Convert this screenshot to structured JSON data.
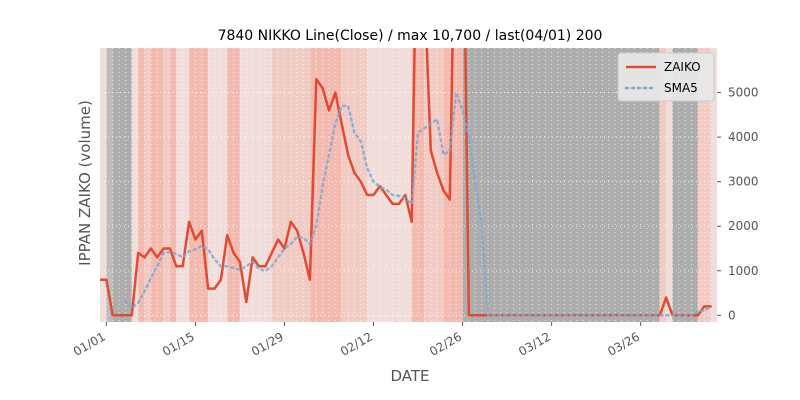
{
  "chart_data": {
    "type": "line",
    "title": "7840 NIKKO Line(Close) / max 10,700 / last(04/01) 200",
    "xlabel": "DATE",
    "ylabel": "IPPAN ZAIKO (volume)",
    "ylim": [
      -150,
      6000
    ],
    "yticks": [
      0,
      1000,
      2000,
      3000,
      4000,
      5000
    ],
    "ytick_labels": [
      "0",
      "1000",
      "2000",
      "3000",
      "4000",
      "5000"
    ],
    "x_start_date": "12/31",
    "x_end_date": "04/01",
    "xticks": [
      "01/01",
      "01/15",
      "01/29",
      "02/12",
      "02/26",
      "03/12",
      "03/26"
    ],
    "xtick_day_index": [
      1,
      15,
      29,
      43,
      57,
      71,
      85
    ],
    "grid": true,
    "legend": "top-right",
    "series": [
      {
        "name": "ZAIKO",
        "color": "#e24a33",
        "style": "solid",
        "points": [
          [
            0,
            800
          ],
          [
            1,
            800
          ],
          [
            2,
            0
          ],
          [
            5,
            0
          ],
          [
            6,
            1400
          ],
          [
            7,
            1300
          ],
          [
            8,
            1500
          ],
          [
            9,
            1300
          ],
          [
            10,
            1500
          ],
          [
            11,
            1500
          ],
          [
            12,
            1100
          ],
          [
            13,
            1100
          ],
          [
            14,
            2100
          ],
          [
            15,
            1700
          ],
          [
            16,
            1900
          ],
          [
            17,
            600
          ],
          [
            18,
            600
          ],
          [
            19,
            800
          ],
          [
            20,
            1800
          ],
          [
            21,
            1400
          ],
          [
            22,
            1200
          ],
          [
            23,
            300
          ],
          [
            24,
            1300
          ],
          [
            25,
            1100
          ],
          [
            26,
            1100
          ],
          [
            28,
            1700
          ],
          [
            29,
            1500
          ],
          [
            30,
            2100
          ],
          [
            31,
            1900
          ],
          [
            32,
            1400
          ],
          [
            33,
            800
          ],
          [
            34,
            5300
          ],
          [
            35,
            5100
          ],
          [
            36,
            4600
          ],
          [
            37,
            5000
          ],
          [
            38,
            4300
          ],
          [
            39,
            3600
          ],
          [
            40,
            3200
          ],
          [
            41,
            3000
          ],
          [
            42,
            2700
          ],
          [
            43,
            2700
          ],
          [
            44,
            2900
          ],
          [
            45,
            2700
          ],
          [
            46,
            2500
          ],
          [
            47,
            2500
          ],
          [
            48,
            2700
          ],
          [
            49,
            2100
          ],
          [
            50,
            10700
          ],
          [
            51,
            7400
          ],
          [
            52,
            3700
          ],
          [
            53,
            3200
          ],
          [
            54,
            2800
          ],
          [
            55,
            2600
          ],
          [
            56,
            10700
          ],
          [
            57,
            10700
          ],
          [
            58,
            0
          ],
          [
            88,
            0
          ],
          [
            89,
            400
          ],
          [
            90,
            0
          ],
          [
            94,
            0
          ],
          [
            95,
            200
          ],
          [
            96,
            200
          ]
        ]
      },
      {
        "name": "SMA5",
        "color": "#7fa9cf",
        "style": "dotted",
        "points": [
          [
            4,
            320
          ],
          [
            5,
            160
          ],
          [
            6,
            280
          ],
          [
            7,
            540
          ],
          [
            8,
            840
          ],
          [
            9,
            1100
          ],
          [
            10,
            1400
          ],
          [
            11,
            1420
          ],
          [
            12,
            1380
          ],
          [
            13,
            1300
          ],
          [
            14,
            1440
          ],
          [
            15,
            1480
          ],
          [
            16,
            1560
          ],
          [
            17,
            1480
          ],
          [
            18,
            1260
          ],
          [
            19,
            1100
          ],
          [
            20,
            1100
          ],
          [
            21,
            1060
          ],
          [
            22,
            1020
          ],
          [
            23,
            1100
          ],
          [
            24,
            1200
          ],
          [
            25,
            1040
          ],
          [
            26,
            1000
          ],
          [
            27,
            1100
          ],
          [
            28,
            1300
          ],
          [
            29,
            1500
          ],
          [
            30,
            1600
          ],
          [
            31,
            1760
          ],
          [
            32,
            1740
          ],
          [
            33,
            1600
          ],
          [
            34,
            2000
          ],
          [
            35,
            2900
          ],
          [
            36,
            3600
          ],
          [
            37,
            4300
          ],
          [
            38,
            4700
          ],
          [
            39,
            4700
          ],
          [
            40,
            4100
          ],
          [
            41,
            3900
          ],
          [
            42,
            3300
          ],
          [
            43,
            3000
          ],
          [
            44,
            2880
          ],
          [
            45,
            2820
          ],
          [
            46,
            2700
          ],
          [
            47,
            2680
          ],
          [
            48,
            2620
          ],
          [
            49,
            2500
          ],
          [
            50,
            4100
          ],
          [
            51,
            4200
          ],
          [
            52,
            4300
          ],
          [
            53,
            4400
          ],
          [
            54,
            3600
          ],
          [
            55,
            3700
          ],
          [
            56,
            5000
          ],
          [
            57,
            4600
          ],
          [
            58,
            4000
          ],
          [
            59,
            3000
          ],
          [
            60,
            2000
          ],
          [
            61,
            0
          ],
          [
            93,
            0
          ],
          [
            94,
            100
          ],
          [
            95,
            100
          ],
          [
            96,
            200
          ]
        ]
      }
    ],
    "background_bands": [
      {
        "from": 0,
        "to": 1,
        "level": 1
      },
      {
        "from": 1,
        "to": 2,
        "level": 4
      },
      {
        "from": 2,
        "to": 5,
        "level": 5
      },
      {
        "from": 5,
        "to": 6,
        "level": 1
      },
      {
        "from": 6,
        "to": 7,
        "level": 3
      },
      {
        "from": 7,
        "to": 8,
        "level": 2
      },
      {
        "from": 8,
        "to": 10,
        "level": 3
      },
      {
        "from": 10,
        "to": 11,
        "level": 2
      },
      {
        "from": 11,
        "to": 12,
        "level": 3
      },
      {
        "from": 12,
        "to": 14,
        "level": 1
      },
      {
        "from": 14,
        "to": 17,
        "level": 3
      },
      {
        "from": 17,
        "to": 20,
        "level": 1
      },
      {
        "from": 20,
        "to": 22,
        "level": 3
      },
      {
        "from": 22,
        "to": 27,
        "level": 1
      },
      {
        "from": 27,
        "to": 33,
        "level": 2
      },
      {
        "from": 33,
        "to": 34,
        "level": 3
      },
      {
        "from": 34,
        "to": 38,
        "level": 3
      },
      {
        "from": 38,
        "to": 42,
        "level": 2
      },
      {
        "from": 42,
        "to": 49,
        "level": 1
      },
      {
        "from": 49,
        "to": 51,
        "level": 3
      },
      {
        "from": 51,
        "to": 54,
        "level": 2
      },
      {
        "from": 54,
        "to": 57,
        "level": 3
      },
      {
        "from": 57,
        "to": 88,
        "level": 5
      },
      {
        "from": 88,
        "to": 89,
        "level": 2
      },
      {
        "from": 89,
        "to": 90,
        "level": 1
      },
      {
        "from": 90,
        "to": 94,
        "level": 5
      },
      {
        "from": 94,
        "to": 96,
        "level": 2
      },
      {
        "from": 96,
        "to": 97,
        "level": 1
      }
    ]
  }
}
